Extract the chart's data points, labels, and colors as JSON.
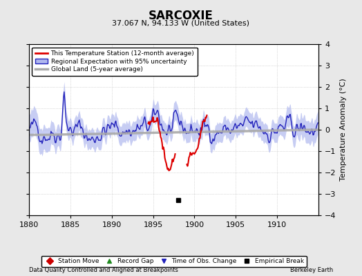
{
  "title": "SARCOXIE",
  "subtitle": "37.067 N, 94.133 W (United States)",
  "footer_left": "Data Quality Controlled and Aligned at Breakpoints",
  "footer_right": "Berkeley Earth",
  "ylabel": "Temperature Anomaly (°C)",
  "xlim": [
    1880,
    1915
  ],
  "ylim": [
    -4,
    4
  ],
  "yticks": [
    -4,
    -3,
    -2,
    -1,
    0,
    1,
    2,
    3,
    4
  ],
  "xticks": [
    1880,
    1885,
    1890,
    1895,
    1900,
    1905,
    1910
  ],
  "bg_color": "#e8e8e8",
  "plot_bg_color": "#ffffff",
  "regional_line_color": "#2222bb",
  "regional_fill_color": "#b0b8ee",
  "station_line_color": "#dd0000",
  "global_line_color": "#aaaaaa",
  "legend_items": [
    {
      "label": "This Temperature Station (12-month average)",
      "color": "#dd0000"
    },
    {
      "label": "Regional Expectation with 95% uncertainty",
      "color": "#2222bb"
    },
    {
      "label": "Global Land (5-year average)",
      "color": "#aaaaaa"
    }
  ],
  "marker_legend": [
    {
      "label": "Station Move",
      "color": "#cc0000",
      "marker": "D"
    },
    {
      "label": "Record Gap",
      "color": "#228B22",
      "marker": "^"
    },
    {
      "label": "Time of Obs. Change",
      "color": "#2222bb",
      "marker": "v"
    },
    {
      "label": "Empirical Break",
      "color": "#000000",
      "marker": "s"
    }
  ],
  "empirical_break_x": 1898.0,
  "empirical_break_y": -3.3
}
